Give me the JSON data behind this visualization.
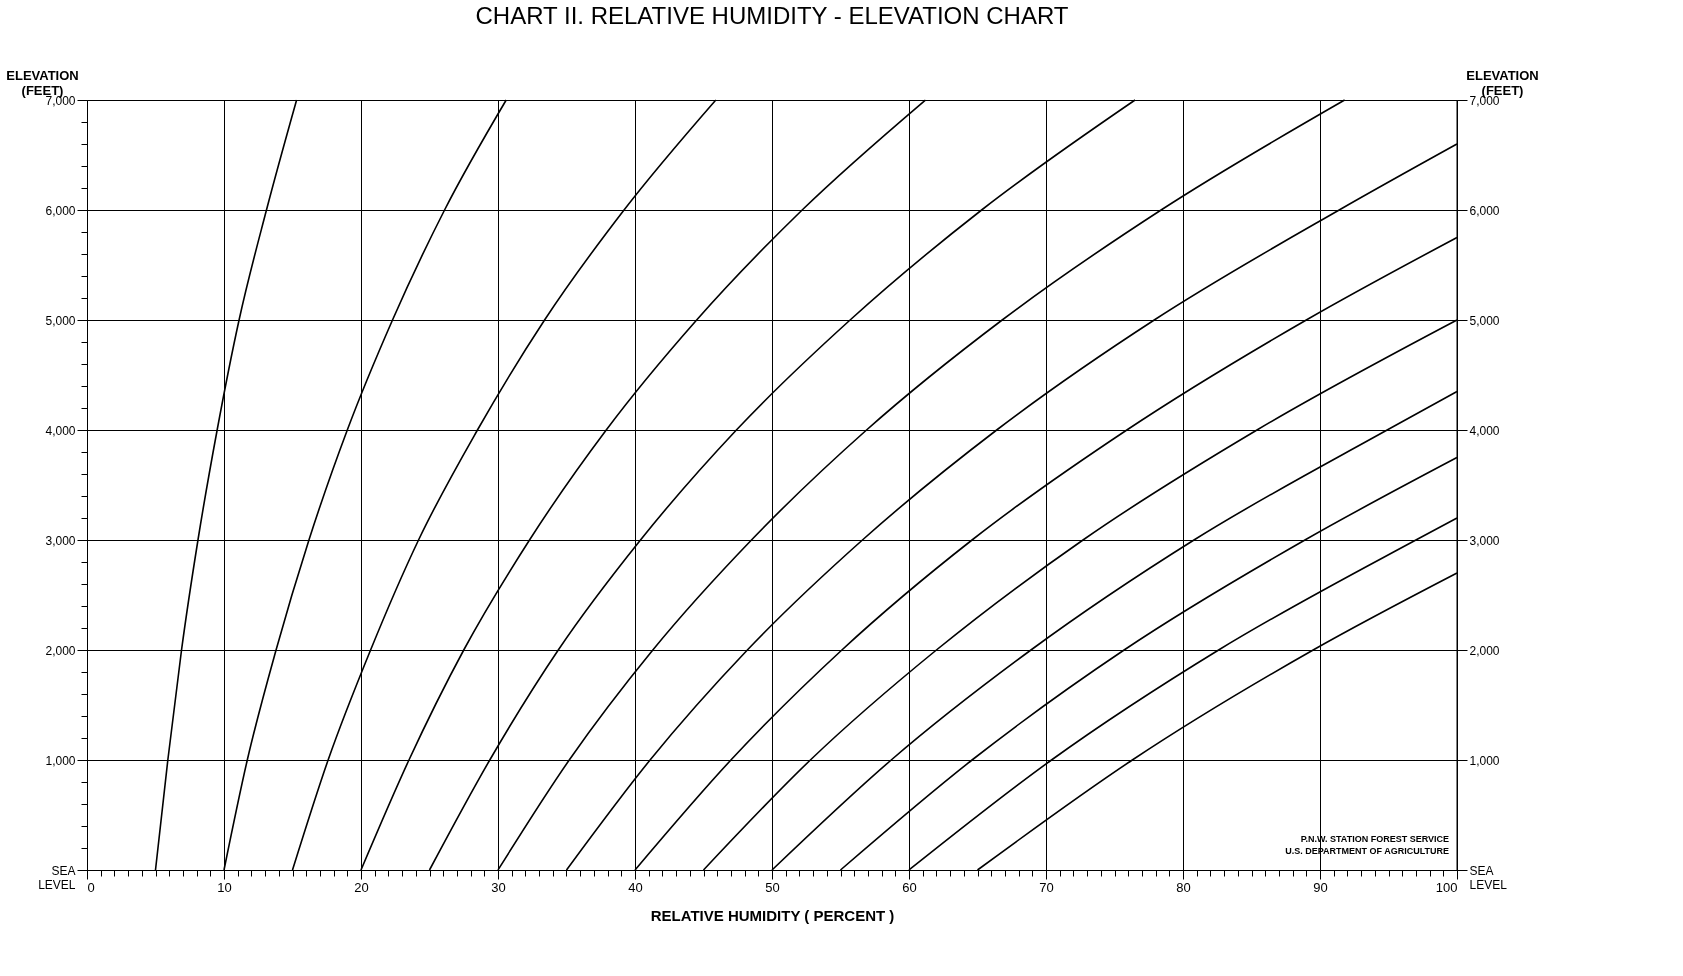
{
  "chart_data": {
    "type": "line",
    "title": "CHART II. RELATIVE HUMIDITY - ELEVATION CHART",
    "xlabel": "RELATIVE HUMIDITY ( PERCENT )",
    "ylabel": "ELEVATION (FEET)",
    "y2label": "ELEVATION (FEET)",
    "xlim": [
      0,
      100
    ],
    "ylim": [
      0,
      7000
    ],
    "y2lim": [
      0,
      7000
    ],
    "xticks": [
      0,
      10,
      20,
      30,
      40,
      50,
      60,
      70,
      80,
      90,
      100,
      {
        "value": 1,
        "label": null
      },
      {
        "value": 2,
        "label": null
      },
      {
        "value": 3,
        "label": null
      },
      {
        "value": 4,
        "label": null
      },
      {
        "value": 5,
        "label": null
      },
      {
        "value": 6,
        "label": null
      },
      {
        "value": 7,
        "label": null
      },
      {
        "value": 8,
        "label": null
      },
      {
        "value": 9,
        "label": null
      },
      {
        "value": 11,
        "label": null
      },
      {
        "value": 12,
        "label": null
      },
      {
        "value": 13,
        "label": null
      },
      {
        "value": 14,
        "label": null
      },
      {
        "value": 15,
        "label": null
      },
      {
        "value": 16,
        "label": null
      },
      {
        "value": 17,
        "label": null
      },
      {
        "value": 18,
        "label": null
      },
      {
        "value": 19,
        "label": null
      },
      {
        "value": 21,
        "label": null
      },
      {
        "value": 22,
        "label": null
      },
      {
        "value": 23,
        "label": null
      },
      {
        "value": 24,
        "label": null
      },
      {
        "value": 25,
        "label": null
      },
      {
        "value": 26,
        "label": null
      },
      {
        "value": 27,
        "label": null
      },
      {
        "value": 28,
        "label": null
      },
      {
        "value": 29,
        "label": null
      },
      {
        "value": 31,
        "label": null
      },
      {
        "value": 32,
        "label": null
      },
      {
        "value": 33,
        "label": null
      },
      {
        "value": 34,
        "label": null
      },
      {
        "value": 35,
        "label": null
      },
      {
        "value": 36,
        "label": null
      },
      {
        "value": 37,
        "label": null
      },
      {
        "value": 38,
        "label": null
      },
      {
        "value": 39,
        "label": null
      },
      {
        "value": 41,
        "label": null
      },
      {
        "value": 42,
        "label": null
      },
      {
        "value": 43,
        "label": null
      },
      {
        "value": 44,
        "label": null
      },
      {
        "value": 45,
        "label": null
      },
      {
        "value": 46,
        "label": null
      },
      {
        "value": 47,
        "label": null
      },
      {
        "value": 48,
        "label": null
      },
      {
        "value": 49,
        "label": null
      },
      {
        "value": 51,
        "label": null
      },
      {
        "value": 52,
        "label": null
      },
      {
        "value": 53,
        "label": null
      },
      {
        "value": 54,
        "label": null
      },
      {
        "value": 55,
        "label": null
      },
      {
        "value": 56,
        "label": null
      },
      {
        "value": 57,
        "label": null
      },
      {
        "value": 58,
        "label": null
      },
      {
        "value": 59,
        "label": null
      },
      {
        "value": 61,
        "label": null
      },
      {
        "value": 62,
        "label": null
      },
      {
        "value": 63,
        "label": null
      },
      {
        "value": 64,
        "label": null
      },
      {
        "value": 65,
        "label": null
      },
      {
        "value": 66,
        "label": null
      },
      {
        "value": 67,
        "label": null
      },
      {
        "value": 68,
        "label": null
      },
      {
        "value": 69,
        "label": null
      },
      {
        "value": 71,
        "label": null
      },
      {
        "value": 72,
        "label": null
      },
      {
        "value": 73,
        "label": null
      },
      {
        "value": 74,
        "label": null
      },
      {
        "value": 75,
        "label": null
      },
      {
        "value": 76,
        "label": null
      },
      {
        "value": 77,
        "label": null
      },
      {
        "value": 78,
        "label": null
      },
      {
        "value": 79,
        "label": null
      },
      {
        "value": 81,
        "label": null
      },
      {
        "value": 82,
        "label": null
      },
      {
        "value": 83,
        "label": null
      },
      {
        "value": 84,
        "label": null
      },
      {
        "value": 85,
        "label": null
      },
      {
        "value": 86,
        "label": null
      },
      {
        "value": 87,
        "label": null
      },
      {
        "value": 88,
        "label": null
      },
      {
        "value": 89,
        "label": null
      },
      {
        "value": 91,
        "label": null
      },
      {
        "value": 92,
        "label": null
      },
      {
        "value": 93,
        "label": null
      },
      {
        "value": 94,
        "label": null
      },
      {
        "value": 95,
        "label": null
      },
      {
        "value": 96,
        "label": null
      },
      {
        "value": 97,
        "label": null
      },
      {
        "value": 98,
        "label": null
      },
      {
        "value": 99,
        "label": null
      }
    ],
    "yticks": [
      {
        "value": 0,
        "label": "SEA LEVEL"
      },
      {
        "value": 1000,
        "label": "1,000"
      },
      {
        "value": 2000,
        "label": "2,000"
      },
      {
        "value": 3000,
        "label": "3,000"
      },
      {
        "value": 4000,
        "label": "4,000"
      },
      {
        "value": 5000,
        "label": "5,000"
      },
      {
        "value": 6000,
        "label": "6,000"
      },
      {
        "value": 7000,
        "label": "7,000"
      },
      {
        "value": 200,
        "label": null
      },
      {
        "value": 400,
        "label": null
      },
      {
        "value": 600,
        "label": null
      },
      {
        "value": 800,
        "label": null
      },
      {
        "value": 1200,
        "label": null
      },
      {
        "value": 1400,
        "label": null
      },
      {
        "value": 1600,
        "label": null
      },
      {
        "value": 1800,
        "label": null
      },
      {
        "value": 2200,
        "label": null
      },
      {
        "value": 2400,
        "label": null
      },
      {
        "value": 2600,
        "label": null
      },
      {
        "value": 2800,
        "label": null
      },
      {
        "value": 3200,
        "label": null
      },
      {
        "value": 3400,
        "label": null
      },
      {
        "value": 3600,
        "label": null
      },
      {
        "value": 3800,
        "label": null
      },
      {
        "value": 4200,
        "label": null
      },
      {
        "value": 4400,
        "label": null
      },
      {
        "value": 4600,
        "label": null
      },
      {
        "value": 4800,
        "label": null
      },
      {
        "value": 5200,
        "label": null
      },
      {
        "value": 5400,
        "label": null
      },
      {
        "value": 5600,
        "label": null
      },
      {
        "value": 5800,
        "label": null
      },
      {
        "value": 6200,
        "label": null
      },
      {
        "value": 6400,
        "label": null
      },
      {
        "value": 6600,
        "label": null
      },
      {
        "value": 6800,
        "label": null
      }
    ],
    "y2ticks": [
      {
        "value": 0,
        "label": "SEA LEVEL"
      },
      {
        "value": 1000,
        "label": "1,000"
      },
      {
        "value": 2000,
        "label": "2,000"
      },
      {
        "value": 3000,
        "label": "3,000"
      },
      {
        "value": 4000,
        "label": "4,000"
      },
      {
        "value": 5000,
        "label": "5,000"
      },
      {
        "value": 6000,
        "label": "6,000"
      },
      {
        "value": 7000,
        "label": "7,000"
      }
    ],
    "grid": true,
    "marker": "none",
    "line_style": "solid",
    "annotations": [
      "P.N.W. STATION   FOREST SERVICE",
      "U.S. DEPARTMENT OF AGRICULTURE"
    ],
    "series": [
      {
        "color": "#000000",
        "x": [
          5,
          5.9,
          6.9,
          8.1,
          9.5,
          11.1,
          13.1,
          15.3
        ],
        "values": [
          0,
          1000,
          2000,
          3000,
          4000,
          5000,
          6000,
          7000
        ]
      },
      {
        "color": "#000000",
        "x": [
          10,
          11.7,
          13.8,
          16.2,
          19.0,
          22.3,
          26.1,
          30.6
        ],
        "values": [
          0,
          1000,
          2000,
          3000,
          4000,
          5000,
          6000,
          7000
        ]
      },
      {
        "color": "#000000",
        "x": [
          15,
          17.6,
          20.7,
          24.2,
          28.5,
          33.4,
          39.2,
          45.9
        ],
        "values": [
          0,
          1000,
          2000,
          3000,
          4000,
          5000,
          6000,
          7000
        ]
      },
      {
        "color": "#000000",
        "x": [
          20,
          23.5,
          27.5,
          32.3,
          37.9,
          44.5,
          52.2,
          61.2
        ],
        "values": [
          0,
          1000,
          2000,
          3000,
          4000,
          5000,
          6000,
          7000
        ]
      },
      {
        "color": "#000000",
        "x": [
          25,
          29.4,
          34.4,
          40.4,
          47.4,
          55.7,
          65.3,
          76.5
        ],
        "values": [
          0,
          1000,
          2000,
          3000,
          4000,
          5000,
          6000,
          7000
        ]
      },
      {
        "color": "#000000",
        "x": [
          30,
          35.2,
          41.3,
          48.5,
          56.9,
          66.8,
          78.4,
          91.8
        ],
        "values": [
          0,
          1000,
          2000,
          3000,
          4000,
          5000,
          6000,
          7000
        ]
      },
      {
        "color": "#000000",
        "x": [
          35,
          41.1,
          48.2,
          56.6,
          66.4,
          77.9,
          91.4,
          100
        ],
        "values": [
          0,
          1000,
          2000,
          3000,
          4000,
          5000,
          6000,
          6600
        ]
      },
      {
        "color": "#000000",
        "x": [
          40,
          47.0,
          55.1,
          64.6,
          75.9,
          89.0,
          100
        ],
        "values": [
          0,
          1000,
          2000,
          3000,
          4000,
          5000,
          5750
        ]
      },
      {
        "color": "#000000",
        "x": [
          45,
          52.8,
          62.0,
          72.7,
          85.4,
          100
        ],
        "values": [
          0,
          1000,
          2000,
          3000,
          4000,
          5000
        ]
      },
      {
        "color": "#000000",
        "x": [
          50,
          58.7,
          68.9,
          80.8,
          94.9,
          100
        ],
        "values": [
          0,
          1000,
          2000,
          3000,
          4000,
          4350
        ]
      },
      {
        "color": "#000000",
        "x": [
          55,
          64.6,
          75.7,
          88.9,
          100
        ],
        "values": [
          0,
          1000,
          2000,
          3000,
          3750
        ]
      },
      {
        "color": "#000000",
        "x": [
          60,
          70.4,
          82.6,
          97.0,
          100
        ],
        "values": [
          0,
          1000,
          2000,
          3000,
          3200
        ]
      },
      {
        "color": "#000000",
        "x": [
          65,
          76.3,
          89.5,
          100
        ],
        "values": [
          0,
          1000,
          2000,
          2700
        ]
      }
    ]
  }
}
